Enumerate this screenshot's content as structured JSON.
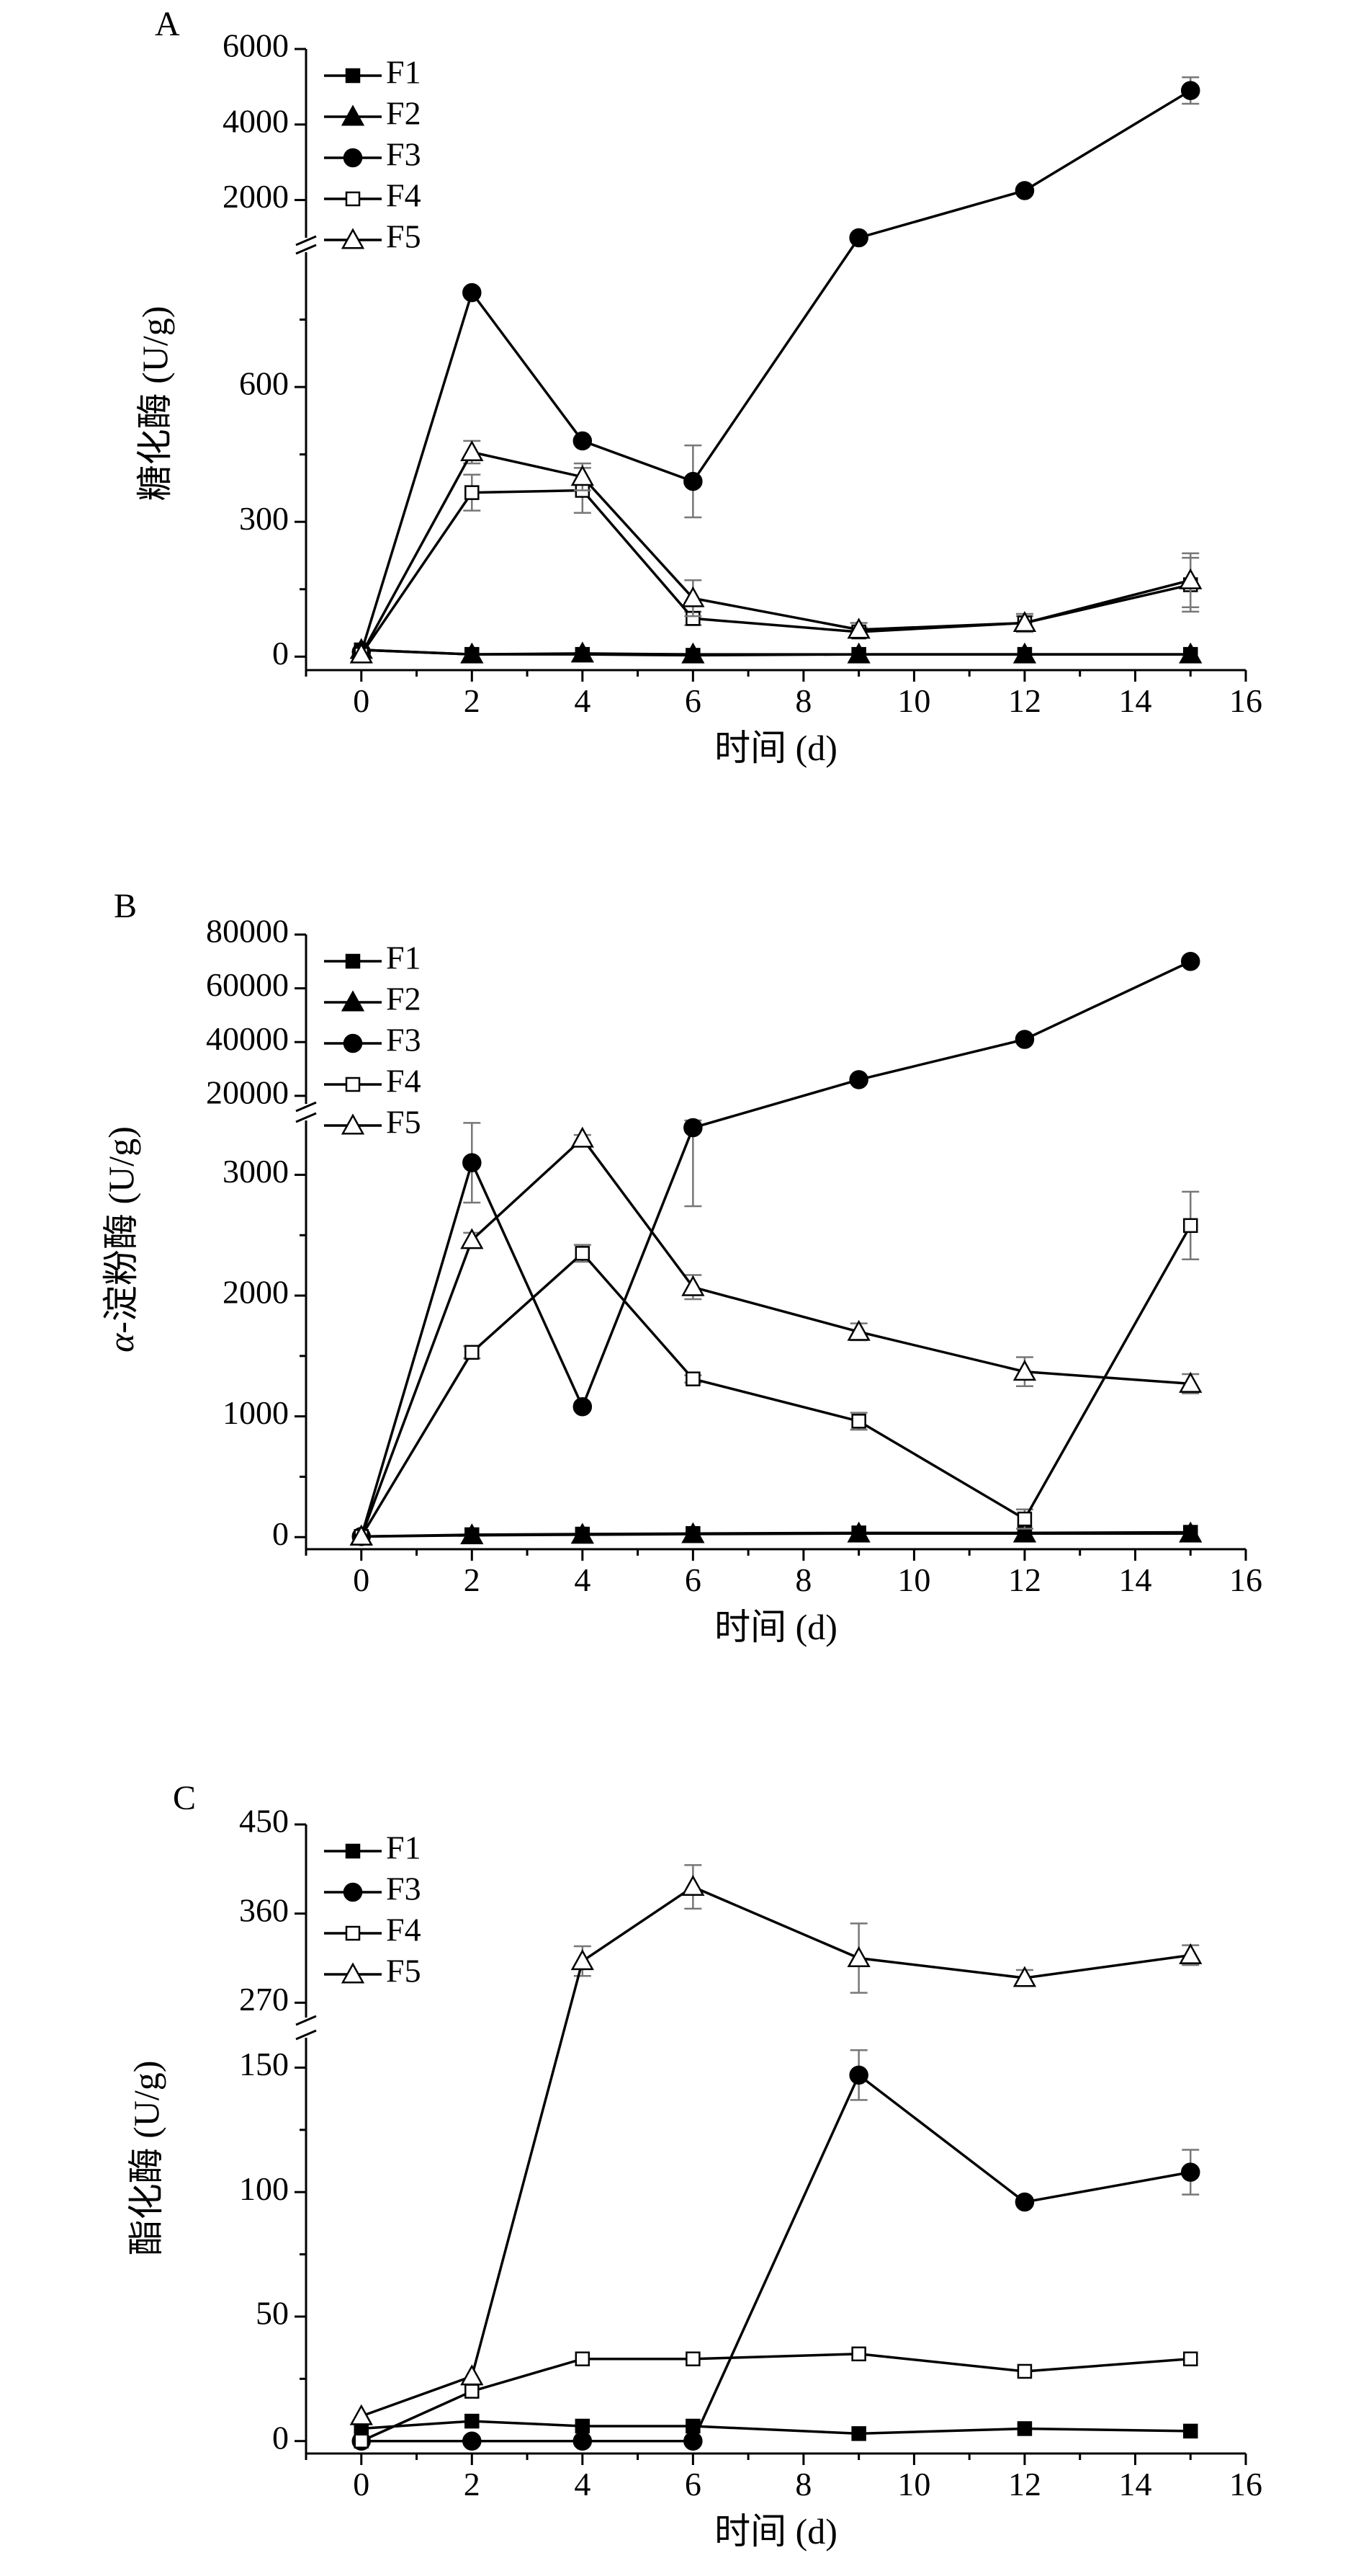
{
  "chart_data": [
    {
      "type": "line",
      "panel_label": "A",
      "xlabel": "时间 (d)",
      "ylabel": "糖化酶 (U/g)",
      "x_ticks": [
        0,
        2,
        4,
        6,
        8,
        10,
        12,
        14,
        16
      ],
      "xlim": [
        -1,
        16
      ],
      "y_axis_break": true,
      "y_segments": [
        {
          "ylim": [
            -30,
            900
          ],
          "ticks": [
            0,
            300,
            600
          ]
        },
        {
          "ylim": [
            1000,
            6000
          ],
          "ticks": [
            2000,
            4000,
            6000
          ]
        }
      ],
      "legend_position": "top-left",
      "series": [
        {
          "name": "F1",
          "marker": "square-filled",
          "x": [
            0,
            2,
            4,
            6,
            9,
            12,
            15
          ],
          "values": [
            15,
            5,
            5,
            3,
            5,
            5,
            5
          ],
          "error": [
            0,
            0,
            0,
            0,
            0,
            0,
            0
          ]
        },
        {
          "name": "F2",
          "marker": "triangle-filled",
          "x": [
            0,
            2,
            4,
            6,
            9,
            12,
            15
          ],
          "values": [
            15,
            5,
            7,
            5,
            5,
            5,
            5
          ],
          "error": [
            0,
            0,
            0,
            0,
            0,
            0,
            0
          ]
        },
        {
          "name": "F3",
          "marker": "circle-filled",
          "x": [
            0,
            2,
            4,
            6,
            9,
            12,
            15
          ],
          "values": [
            10,
            810,
            480,
            390,
            1000,
            2250,
            4900
          ],
          "error": [
            0,
            0,
            0,
            80,
            0,
            0,
            350
          ]
        },
        {
          "name": "F4",
          "marker": "square-open",
          "x": [
            0,
            2,
            4,
            6,
            9,
            12,
            15
          ],
          "values": [
            5,
            365,
            370,
            85,
            55,
            75,
            160
          ],
          "error": [
            0,
            40,
            50,
            15,
            10,
            15,
            60
          ]
        },
        {
          "name": "F5",
          "marker": "triangle-open",
          "x": [
            0,
            2,
            4,
            6,
            9,
            12,
            15
          ],
          "values": [
            5,
            455,
            400,
            130,
            60,
            75,
            170
          ],
          "error": [
            0,
            25,
            30,
            40,
            15,
            20,
            60
          ]
        }
      ]
    },
    {
      "type": "line",
      "panel_label": "B",
      "xlabel": "时间 (d)",
      "ylabel_prefix": "α",
      "ylabel": "-淀粉酶 (U/g)",
      "x_ticks": [
        0,
        2,
        4,
        6,
        8,
        10,
        12,
        14,
        16
      ],
      "xlim": [
        -1,
        16
      ],
      "y_axis_break": true,
      "y_segments": [
        {
          "ylim": [
            -100,
            3450
          ],
          "ticks": [
            0,
            1000,
            2000,
            3000
          ]
        },
        {
          "ylim": [
            17000,
            80000
          ],
          "ticks": [
            20000,
            40000,
            60000,
            80000
          ]
        }
      ],
      "legend_position": "top-left",
      "series": [
        {
          "name": "F1",
          "marker": "square-filled",
          "x": [
            0,
            2,
            4,
            6,
            9,
            12,
            15
          ],
          "values": [
            5,
            20,
            25,
            30,
            35,
            35,
            40
          ],
          "error": [
            0,
            0,
            0,
            0,
            0,
            0,
            0
          ]
        },
        {
          "name": "F2",
          "marker": "triangle-filled",
          "x": [
            0,
            2,
            4,
            6,
            9,
            12,
            15
          ],
          "values": [
            5,
            15,
            20,
            25,
            30,
            30,
            30
          ],
          "error": [
            0,
            0,
            0,
            0,
            0,
            0,
            0
          ]
        },
        {
          "name": "F3",
          "marker": "circle-filled",
          "x": [
            0,
            2,
            4,
            6,
            9,
            12,
            15
          ],
          "values": [
            5,
            3100,
            1080,
            3390,
            26000,
            41000,
            70000
          ],
          "error": [
            0,
            330,
            0,
            650,
            0,
            0,
            0
          ]
        },
        {
          "name": "F4",
          "marker": "square-open",
          "x": [
            0,
            2,
            4,
            6,
            9,
            12,
            15
          ],
          "values": [
            5,
            1530,
            2350,
            1310,
            960,
            150,
            2580
          ],
          "error": [
            0,
            50,
            70,
            30,
            70,
            80,
            280
          ]
        },
        {
          "name": "F5",
          "marker": "triangle-open",
          "x": [
            0,
            2,
            4,
            6,
            9,
            12,
            15
          ],
          "values": [
            5,
            2460,
            3300,
            2070,
            1700,
            1370,
            1270
          ],
          "error": [
            0,
            60,
            30,
            100,
            70,
            120,
            80
          ]
        }
      ]
    },
    {
      "type": "line",
      "panel_label": "C",
      "xlabel": "时间 (d)",
      "ylabel": "酯化酶 (U/g)",
      "x_ticks": [
        0,
        2,
        4,
        6,
        8,
        10,
        12,
        14,
        16
      ],
      "xlim": [
        -1,
        16
      ],
      "y_axis_break": true,
      "y_segments": [
        {
          "ylim": [
            -5,
            162
          ],
          "ticks": [
            0,
            50,
            100,
            150
          ]
        },
        {
          "ylim": [
            255,
            450
          ],
          "ticks": [
            270,
            360,
            450
          ]
        }
      ],
      "legend_position": "top-left",
      "series": [
        {
          "name": "F1",
          "marker": "square-filled",
          "x": [
            0,
            2,
            4,
            6,
            9,
            12,
            15
          ],
          "values": [
            5,
            8,
            6,
            6,
            3,
            5,
            4
          ],
          "error": [
            0,
            0,
            0,
            0,
            0,
            0,
            0
          ]
        },
        {
          "name": "F3",
          "marker": "circle-filled",
          "x": [
            0,
            2,
            4,
            6,
            9,
            12,
            15
          ],
          "values": [
            0,
            0,
            0,
            0,
            147,
            96,
            108
          ],
          "error": [
            0,
            0,
            0,
            0,
            10,
            0,
            9
          ]
        },
        {
          "name": "F4",
          "marker": "square-open",
          "x": [
            0,
            2,
            4,
            6,
            9,
            12,
            15
          ],
          "values": [
            0,
            20,
            33,
            33,
            35,
            28,
            33
          ],
          "error": [
            0,
            0,
            0,
            0,
            0,
            0,
            0
          ]
        },
        {
          "name": "F5",
          "marker": "triangle-open",
          "x": [
            0,
            2,
            4,
            6,
            9,
            12,
            15
          ],
          "values": [
            10,
            26,
            312,
            387,
            315,
            295,
            318
          ],
          "error": [
            0,
            0,
            15,
            22,
            35,
            8,
            10
          ]
        }
      ]
    }
  ]
}
